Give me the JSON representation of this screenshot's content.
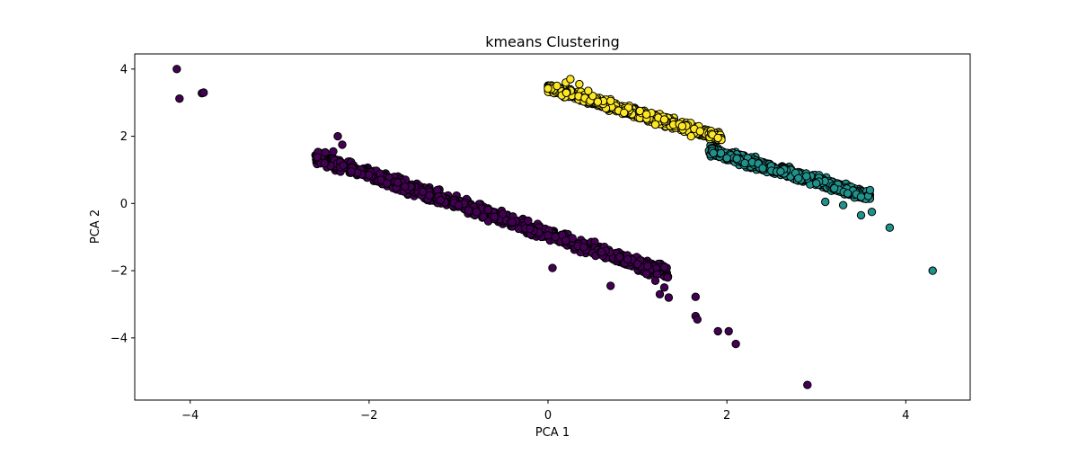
{
  "chart_data": {
    "type": "scatter",
    "title": "kmeans Clustering",
    "xlabel": "PCA 1",
    "ylabel": "PCA 2",
    "xlim": [
      -4.62,
      4.72
    ],
    "ylim": [
      -5.85,
      4.45
    ],
    "xticks": [
      -4,
      -2,
      0,
      2,
      4
    ],
    "xtick_labels": [
      "−4",
      "−2",
      "0",
      "2",
      "4"
    ],
    "yticks": [
      4,
      2,
      0,
      -2,
      -4
    ],
    "ytick_labels": [
      "4",
      "2",
      "0",
      "−2",
      "−4"
    ],
    "grid": false,
    "legend": "none",
    "marker_edge_color": "#000000",
    "series": [
      {
        "cluster": 0,
        "color": "#440154",
        "band": {
          "x_range": [
            -2.6,
            1.35
          ],
          "slope": -0.88,
          "intercept": -0.9,
          "spread": 0.32
        },
        "points": [
          [
            -4.15,
            4.0
          ],
          [
            -4.12,
            3.12
          ],
          [
            -3.87,
            3.28
          ],
          [
            -3.85,
            3.3
          ],
          [
            -2.35,
            2.0
          ],
          [
            -2.58,
            1.38
          ],
          [
            -2.5,
            1.2
          ],
          [
            -2.4,
            1.55
          ],
          [
            -2.3,
            1.75
          ],
          [
            -2.2,
            0.95
          ],
          [
            -2.0,
            0.85
          ],
          [
            -1.8,
            0.6
          ],
          [
            -1.6,
            0.5
          ],
          [
            -1.4,
            0.35
          ],
          [
            -1.2,
            0.1
          ],
          [
            -1.0,
            -0.05
          ],
          [
            -0.8,
            -0.25
          ],
          [
            -0.6,
            -0.4
          ],
          [
            -0.4,
            -0.55
          ],
          [
            -0.2,
            -0.75
          ],
          [
            0.0,
            -0.95
          ],
          [
            0.2,
            -1.1
          ],
          [
            0.4,
            -1.3
          ],
          [
            0.6,
            -1.45
          ],
          [
            0.8,
            -1.6
          ],
          [
            1.0,
            -1.8
          ],
          [
            1.1,
            -2.1
          ],
          [
            1.2,
            -2.3
          ],
          [
            1.3,
            -2.5
          ],
          [
            1.35,
            -2.8
          ],
          [
            0.05,
            -1.92
          ],
          [
            0.7,
            -2.45
          ],
          [
            1.25,
            -2.7
          ],
          [
            1.65,
            -2.78
          ],
          [
            1.65,
            -3.35
          ],
          [
            1.67,
            -3.45
          ],
          [
            1.9,
            -3.8
          ],
          [
            2.02,
            -3.8
          ],
          [
            2.1,
            -4.18
          ],
          [
            2.9,
            -5.4
          ]
        ]
      },
      {
        "cluster": 1,
        "color": "#21918c",
        "band": {
          "x_range": [
            1.8,
            3.6
          ],
          "slope": -0.76,
          "intercept": 2.95,
          "spread": 0.24
        },
        "points": [
          [
            1.85,
            1.5
          ],
          [
            2.0,
            1.35
          ],
          [
            2.2,
            1.2
          ],
          [
            2.4,
            1.05
          ],
          [
            2.6,
            0.95
          ],
          [
            2.8,
            0.75
          ],
          [
            3.0,
            0.6
          ],
          [
            3.2,
            0.45
          ],
          [
            3.35,
            0.3
          ],
          [
            3.5,
            0.2
          ],
          [
            3.1,
            0.05
          ],
          [
            3.3,
            -0.05
          ],
          [
            3.5,
            -0.35
          ],
          [
            3.62,
            -0.25
          ],
          [
            3.6,
            0.4
          ],
          [
            3.82,
            -0.72
          ],
          [
            4.3,
            -2.0
          ]
        ]
      },
      {
        "cluster": 2,
        "color": "#fde725",
        "band": {
          "x_range": [
            0.0,
            1.95
          ],
          "slope": -0.77,
          "intercept": 3.45,
          "spread": 0.22
        },
        "points": [
          [
            0.0,
            3.42
          ],
          [
            0.1,
            3.5
          ],
          [
            0.2,
            3.6
          ],
          [
            0.25,
            3.7
          ],
          [
            0.35,
            3.55
          ],
          [
            0.5,
            3.2
          ],
          [
            0.7,
            3.05
          ],
          [
            0.9,
            2.85
          ],
          [
            1.1,
            2.65
          ],
          [
            1.3,
            2.5
          ],
          [
            1.5,
            2.3
          ],
          [
            1.7,
            2.15
          ],
          [
            1.9,
            1.95
          ],
          [
            0.45,
            3.35
          ],
          [
            0.85,
            2.7
          ],
          [
            1.2,
            2.35
          ],
          [
            1.6,
            2.0
          ]
        ]
      }
    ]
  }
}
